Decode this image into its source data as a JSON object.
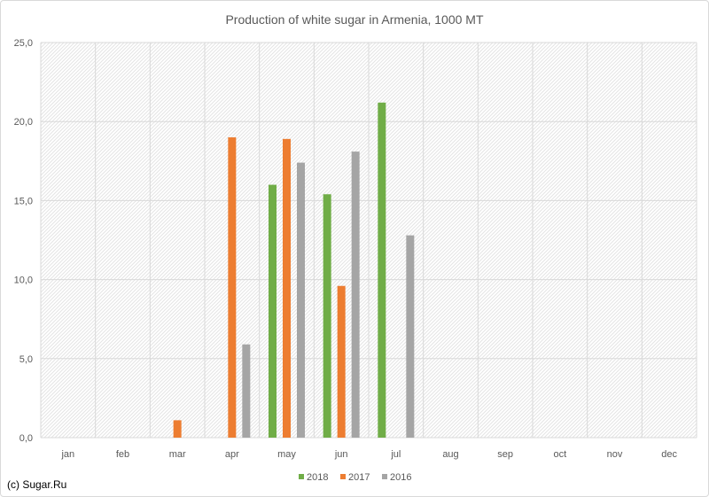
{
  "credit": "(c) Sugar.Ru",
  "chart_data": {
    "type": "bar",
    "title": "Production of white sugar in Armenia, 1000 MT",
    "xlabel": "",
    "ylabel": "",
    "categories": [
      "jan",
      "feb",
      "mar",
      "apr",
      "may",
      "jun",
      "jul",
      "aug",
      "sep",
      "oct",
      "nov",
      "dec"
    ],
    "series": [
      {
        "name": "2018",
        "color": "#70ad47",
        "values": [
          null,
          null,
          null,
          null,
          16.0,
          15.4,
          21.2,
          null,
          null,
          null,
          null,
          null
        ]
      },
      {
        "name": "2017",
        "color": "#ed7d31",
        "values": [
          null,
          null,
          1.1,
          19.0,
          18.9,
          9.6,
          null,
          null,
          null,
          null,
          null,
          null
        ]
      },
      {
        "name": "2016",
        "color": "#a5a5a5",
        "values": [
          null,
          null,
          null,
          5.9,
          17.4,
          18.1,
          12.8,
          null,
          null,
          null,
          null,
          null
        ]
      }
    ],
    "ylim": [
      0,
      25
    ],
    "yticks": [
      0,
      5,
      10,
      15,
      20,
      25
    ],
    "ytick_labels": [
      "0,0",
      "5,0",
      "10,0",
      "15,0",
      "20,0",
      "25,0"
    ],
    "grid": true,
    "legend_position": "bottom"
  }
}
